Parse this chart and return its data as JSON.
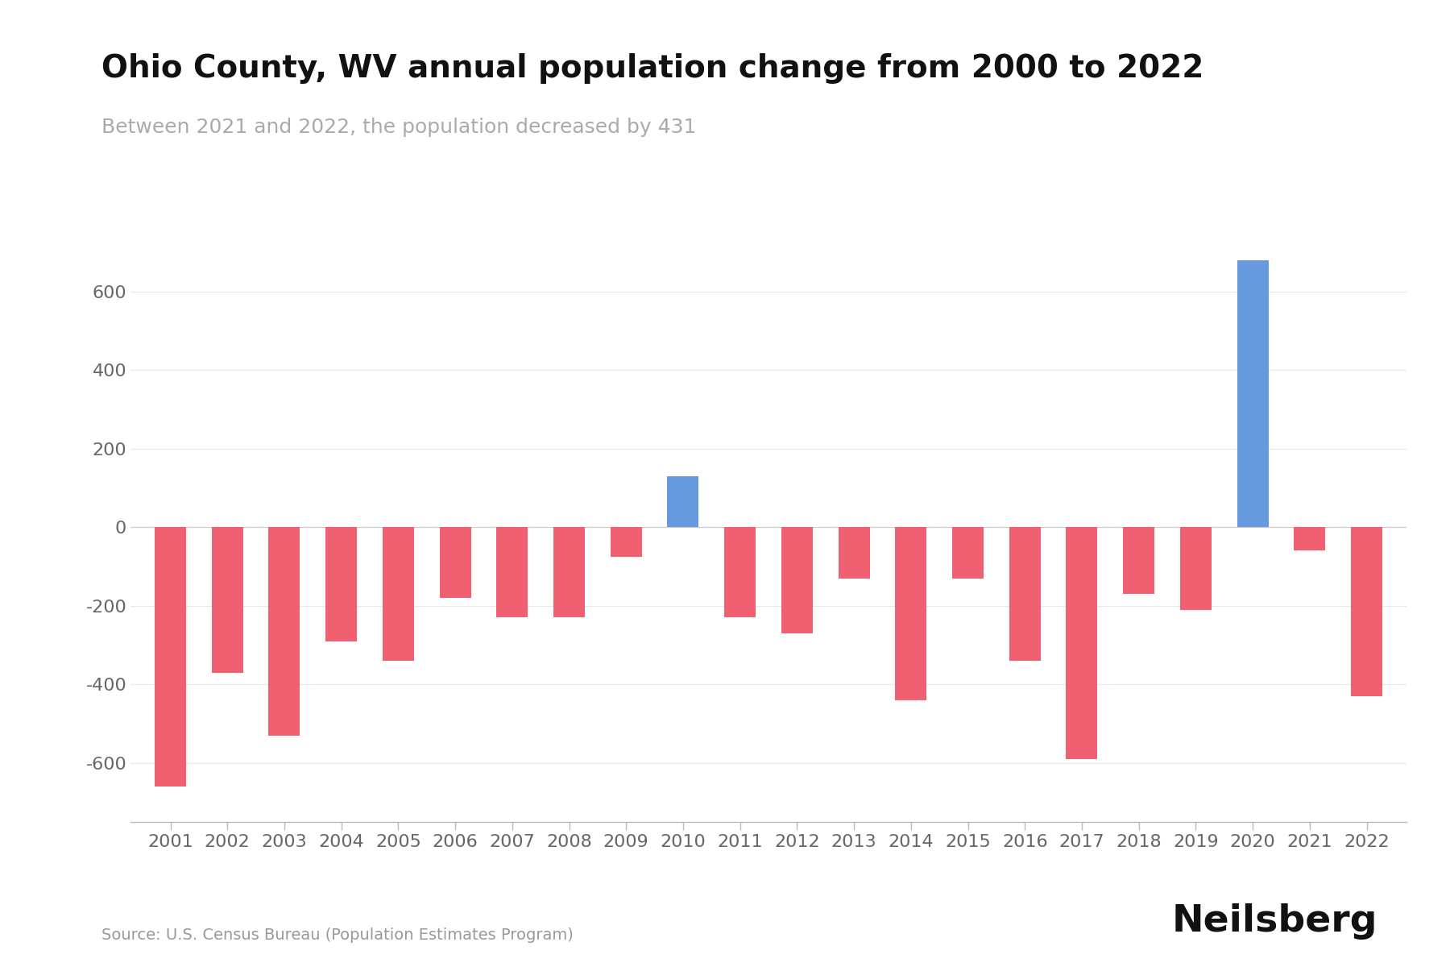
{
  "title": "Ohio County, WV annual population change from 2000 to 2022",
  "subtitle": "Between 2021 and 2022, the population decreased by 431",
  "source": "Source: U.S. Census Bureau (Population Estimates Program)",
  "branding": "Neilsberg",
  "years": [
    2001,
    2002,
    2003,
    2004,
    2005,
    2006,
    2007,
    2008,
    2009,
    2010,
    2011,
    2012,
    2013,
    2014,
    2015,
    2016,
    2017,
    2018,
    2019,
    2020,
    2021,
    2022
  ],
  "values": [
    -660,
    -370,
    -530,
    -290,
    -340,
    -180,
    -230,
    -230,
    -75,
    130,
    -230,
    -270,
    -130,
    -440,
    -130,
    -340,
    -590,
    -170,
    -210,
    680,
    -60,
    -431
  ],
  "positive_color": "#6699DD",
  "negative_color": "#F06070",
  "background_color": "#ffffff",
  "title_fontsize": 28,
  "subtitle_fontsize": 18,
  "tick_fontsize": 16,
  "source_fontsize": 14,
  "branding_fontsize": 34,
  "ylim": [
    -750,
    800
  ],
  "yticks": [
    -600,
    -400,
    -200,
    0,
    200,
    400,
    600
  ]
}
